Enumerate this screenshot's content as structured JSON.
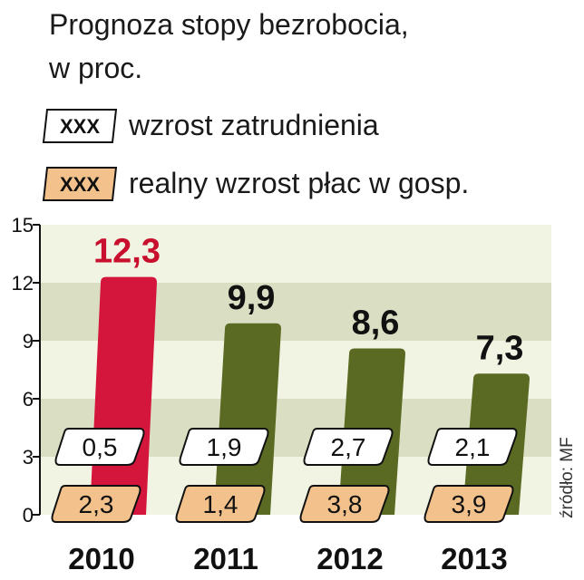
{
  "chart_data": {
    "type": "bar",
    "title": "Prognoza stopy bezrobocia,",
    "subtitle": "w proc.",
    "categories": [
      "2010",
      "2011",
      "2012",
      "2013"
    ],
    "values": [
      12.3,
      9.9,
      8.6,
      7.3
    ],
    "value_labels": [
      "12,3",
      "9,9",
      "8,6",
      "7,3"
    ],
    "ylim": [
      0,
      15
    ],
    "yticks": [
      "0",
      "3",
      "6",
      "9",
      "12",
      "15"
    ],
    "ytick_values": [
      0,
      3,
      6,
      9,
      12,
      15
    ],
    "grid": "horizontal bands",
    "legend": [
      {
        "chip": "XXX",
        "label": "wzrost zatrudnienia",
        "style": "white"
      },
      {
        "chip": "XXX",
        "label": "realny wzrost płac w gosp.",
        "style": "orange"
      }
    ],
    "annotations": {
      "wzrost_zatrudnienia": [
        "0,5",
        "1,9",
        "2,7",
        "2,1"
      ],
      "realny_wzrost_plac": [
        "2,3",
        "1,4",
        "3,8",
        "3,9"
      ]
    },
    "source": "źródło: MF",
    "colors": {
      "highlight_bar": "#d4163c",
      "bar": "#5a6a22",
      "orange_box": "#f3c28c",
      "white_box": "#ffffff",
      "band_light": "#f1f3e3",
      "band_dark": "#dadfc3",
      "highlight_label": "#c8102e",
      "label": "#111111"
    }
  }
}
